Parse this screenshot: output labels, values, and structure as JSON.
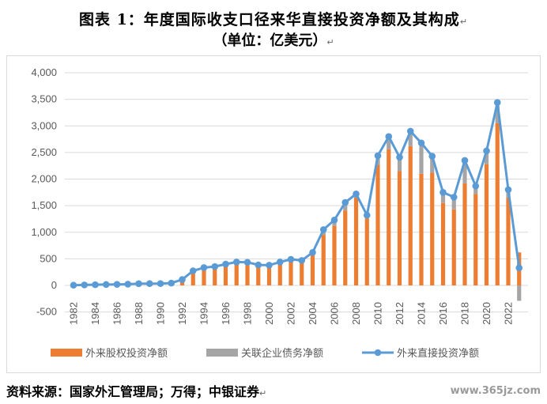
{
  "title": "图表 1：年度国际收支口径来华直接投资净额及其构成",
  "subtitle": "（单位：亿美元）",
  "para_mark": "↵",
  "source": "资料来源：国家外汇管理局；万得；中银证券",
  "watermark": "www.365jz.com",
  "colors": {
    "equity": "#ED7D31",
    "debt": "#A5A5A5",
    "total": "#5B9BD5",
    "grid": "#d9d9d9",
    "text": "#595959"
  },
  "chart_data": {
    "type": "bar",
    "stacked": true,
    "x": [
      1982,
      1983,
      1984,
      1985,
      1986,
      1987,
      1988,
      1989,
      1990,
      1991,
      1992,
      1993,
      1994,
      1995,
      1996,
      1997,
      1998,
      1999,
      2000,
      2001,
      2002,
      2003,
      2004,
      2005,
      2006,
      2007,
      2008,
      2009,
      2010,
      2011,
      2012,
      2013,
      2014,
      2015,
      2016,
      2017,
      2018,
      2019,
      2020,
      2021,
      2022,
      2023
    ],
    "xticks": [
      "1982",
      "1984",
      "1986",
      "1988",
      "1990",
      "1992",
      "1994",
      "1996",
      "1998",
      "2000",
      "2002",
      "2004",
      "2006",
      "2008",
      "2010",
      "2012",
      "2014",
      "2016",
      "2018",
      "2020",
      "2022"
    ],
    "yticks": [
      "4,000",
      "3,500",
      "3,000",
      "2,500",
      "2,000",
      "1,500",
      "1,000",
      "500",
      "0",
      "-500"
    ],
    "ylim": [
      -500,
      4000
    ],
    "grid": true,
    "legend_position": "bottom",
    "series": [
      {
        "name": "外来股权投资净额",
        "kind": "bar",
        "values": [
          4,
          9,
          13,
          17,
          19,
          23,
          32,
          34,
          35,
          43,
          110,
          275,
          335,
          355,
          400,
          440,
          435,
          385,
          380,
          440,
          480,
          470,
          570,
          950,
          1120,
          1410,
          1650,
          1260,
          2260,
          2560,
          2150,
          2620,
          2100,
          2120,
          1550,
          1430,
          1920,
          1720,
          2280,
          3050,
          1650,
          620
        ]
      },
      {
        "name": "关联企业债务净额",
        "kind": "bar",
        "values": [
          0,
          0,
          0,
          0,
          0,
          0,
          0,
          0,
          0,
          0,
          0,
          0,
          0,
          0,
          0,
          0,
          0,
          0,
          0,
          0,
          0,
          0,
          50,
          90,
          100,
          130,
          40,
          70,
          150,
          230,
          260,
          270,
          580,
          300,
          200,
          200,
          420,
          150,
          240,
          330,
          150,
          -290
        ]
      },
      {
        "name": "外来直接投资净额",
        "kind": "line",
        "values": [
          4,
          9,
          13,
          17,
          19,
          23,
          32,
          34,
          35,
          43,
          110,
          275,
          335,
          355,
          400,
          440,
          435,
          385,
          380,
          440,
          490,
          470,
          620,
          1050,
          1230,
          1560,
          1720,
          1320,
          2440,
          2800,
          2410,
          2900,
          2680,
          2430,
          1750,
          1660,
          2350,
          1870,
          2530,
          3440,
          1800,
          330
        ]
      }
    ]
  }
}
